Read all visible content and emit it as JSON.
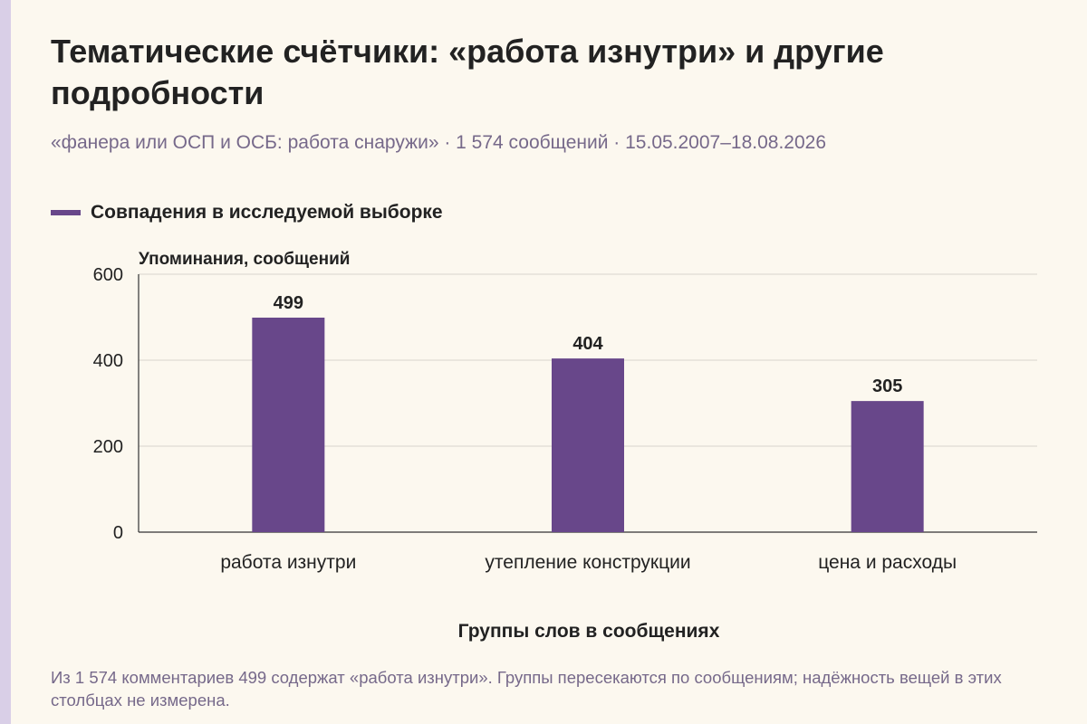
{
  "title": "Тематические счётчики: «работа изнутри» и другие подробности",
  "subtitle": "«фанера или ОСП и ОСБ: работа снаружи» · 1 574 сообщений · 15.05.2007–18.08.2026",
  "footnote": "Из 1 574 комментариев 499 содержат «работа изнутри». Группы пересекаются по сообщениям; надёжность вещей в этих столбцах не измерена.",
  "colors": {
    "bar": "#68478a",
    "accent_strip": "#d9cfe7",
    "background": "#fcf8ef",
    "muted_text": "#76698a",
    "grid": "#d8d4cc",
    "axis": "#333333"
  },
  "chart_data": {
    "type": "bar",
    "categories": [
      "работа изнутри",
      "утепление конструкции",
      "цена и расходы"
    ],
    "series": [
      {
        "name": "Совпадения в исследуемой выборке",
        "values": [
          499,
          404,
          305
        ]
      }
    ],
    "data_labels": [
      "499",
      "404",
      "305"
    ],
    "xlabel": "Группы слов в сообщениях",
    "ylabel": "Упоминания, сообщений",
    "ylim": [
      0,
      600
    ],
    "yticks": [
      0,
      200,
      400,
      600
    ],
    "grid": true,
    "legend": "top-left"
  }
}
